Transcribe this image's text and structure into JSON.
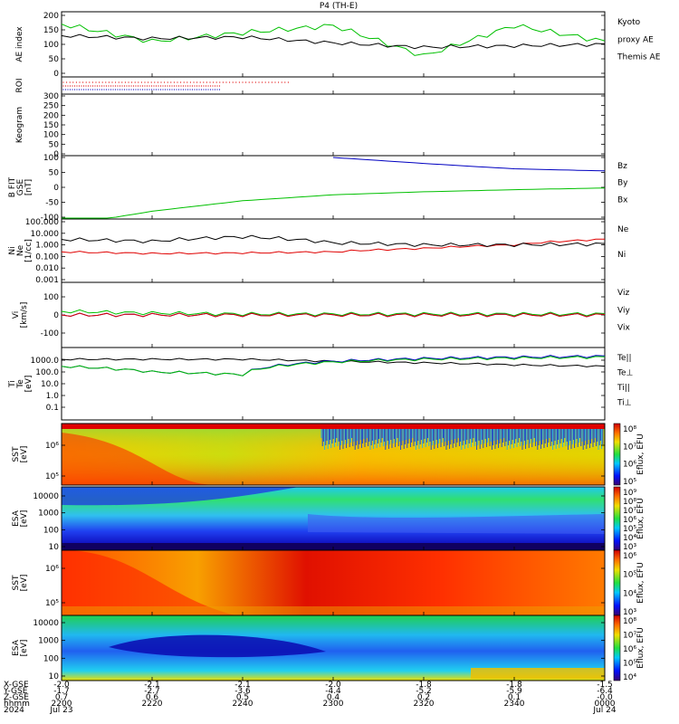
{
  "title": "P4 (TH-E)",
  "panels": {
    "ae": {
      "ylabel": "AE index",
      "yticks": [
        "200",
        "150",
        "100",
        "50",
        "0"
      ],
      "legend": [
        "Kyoto",
        "proxy AE",
        "Themis AE"
      ],
      "legend_colors": [
        "#00c000",
        "#00c000",
        "#000000"
      ]
    },
    "roi": {
      "ylabel": "ROI"
    },
    "keogram": {
      "ylabel": "Keogram",
      "yticks": [
        "300",
        "250",
        "200",
        "150",
        "100",
        "50",
        "0"
      ]
    },
    "bfit": {
      "ylabel": "B FIT\nGSE\n[nT]",
      "yticks": [
        "100",
        "50",
        "0",
        "-50",
        "-100"
      ],
      "legend": [
        "Bz",
        "By",
        "Bx"
      ],
      "legend_colors": [
        "#e00000",
        "#00c000",
        "#0000c0"
      ]
    },
    "ni": {
      "ylabel": "Ni\nNe\n[1/cc]",
      "yticks": [
        "100.000",
        "10.000",
        "1.000",
        "0.100",
        "0.010",
        "0.001"
      ],
      "legend": [
        "Ne",
        "Ni"
      ],
      "legend_colors": [
        "#e00000",
        "#000000"
      ]
    },
    "vi": {
      "ylabel": "Vi\n[km/s]",
      "yticks": [
        "100",
        "0",
        "-100"
      ],
      "legend": [
        "Viz",
        "Viy",
        "Vix"
      ],
      "legend_colors": [
        "#e00000",
        "#00c000",
        "#0000c0"
      ]
    },
    "ti": {
      "ylabel": "Ti\nTe\n[eV]",
      "yticks": [
        "1000.0",
        "100.0",
        "10.0",
        "1.0",
        "0.1"
      ],
      "legend": [
        "Te||",
        "Te⊥",
        "Ti||",
        "Ti⊥"
      ],
      "legend_colors": [
        "#000000",
        "#e00000",
        "#00c000",
        "#0000c0"
      ]
    },
    "sst_e": {
      "ylabel": "SST\n[eV]",
      "yticks": [
        "10⁶",
        "10⁵"
      ],
      "cbar_label": "Eflux, EFU",
      "cbar_ticks": [
        "10⁸",
        "10⁷",
        "10⁶",
        "10⁵"
      ]
    },
    "esa_e": {
      "ylabel": "ESA\n[eV]",
      "yticks": [
        "10000",
        "1000",
        "100",
        "10"
      ],
      "cbar_label": "Eflux, EFU",
      "cbar_ticks": [
        "10⁹",
        "10⁸",
        "10⁷",
        "10⁶",
        "10⁵",
        "10⁴",
        "10³"
      ]
    },
    "sst_i": {
      "ylabel": "SST\n[eV]",
      "yticks": [
        "10⁶",
        "10⁵"
      ],
      "cbar_label": "Eflux, EFU",
      "cbar_ticks": [
        "10⁶",
        "10⁵",
        "10⁴",
        "10³"
      ]
    },
    "esa_i": {
      "ylabel": "ESA\n[eV]",
      "yticks": [
        "10000",
        "1000",
        "100",
        "10"
      ],
      "cbar_label": "Eflux, EFU",
      "cbar_ticks": [
        "10⁸",
        "10⁷",
        "10⁶",
        "10⁵",
        "10⁴"
      ]
    }
  },
  "xaxis": {
    "row_labels": [
      "X-GSE",
      "Y-GSE",
      "Z-GSE",
      "hhmm",
      "2024"
    ],
    "columns": [
      {
        "x": "-2.0",
        "y": "-1.7",
        "z": "0.7",
        "t": "2200",
        "d": "Jul 23"
      },
      {
        "x": "-2.1",
        "y": "-2.7",
        "z": "0.6",
        "t": "2220",
        "d": ""
      },
      {
        "x": "-2.1",
        "y": "-3.6",
        "z": "0.5",
        "t": "2240",
        "d": ""
      },
      {
        "x": "-2.0",
        "y": "-4.4",
        "z": "0.4",
        "t": "2300",
        "d": ""
      },
      {
        "x": "-1.8",
        "y": "-5.2",
        "z": "0.2",
        "t": "2320",
        "d": ""
      },
      {
        "x": "-1.8",
        "y": "-5.9",
        "z": "0.1",
        "t": "2340",
        "d": ""
      },
      {
        "x": "-1.5",
        "y": "-6.4",
        "z": "-0.0",
        "t": "0000",
        "d": "Jul 24"
      }
    ]
  },
  "chart_data": [
    {
      "type": "line",
      "title": "P4 (TH-E)",
      "ylabel": "AE index",
      "ylim": [
        0,
        200
      ],
      "x": [
        "2200",
        "2220",
        "2240",
        "2300",
        "2320",
        "2340",
        "0000"
      ],
      "series": [
        {
          "name": "Kyoto proxy AE",
          "values": [
            170,
            110,
            140,
            165,
            60,
            165,
            110
          ]
        },
        {
          "name": "Themis AE",
          "values": [
            130,
            120,
            125,
            105,
            90,
            95,
            100
          ]
        }
      ]
    },
    {
      "type": "line",
      "ylabel": "B FIT GSE [nT]",
      "ylim": [
        -100,
        100
      ],
      "x": [
        "2200",
        "2220",
        "2240",
        "2300",
        "2320",
        "2340",
        "0000"
      ],
      "series": [
        {
          "name": "Bz",
          "values": [
            null,
            null,
            null,
            100,
            80,
            62,
            55
          ]
        },
        {
          "name": "By",
          "values": [
            -130,
            -80,
            -45,
            -25,
            -15,
            -8,
            -2
          ]
        },
        {
          "name": "Bx",
          "values": [
            null,
            null,
            null,
            null,
            null,
            null,
            null
          ]
        }
      ]
    },
    {
      "type": "line",
      "ylabel": "Ni Ne [1/cc]",
      "x": [
        "2200",
        "2220",
        "2240",
        "2300",
        "2320",
        "2340",
        "0000"
      ],
      "series": [
        {
          "name": "Ne",
          "values": [
            0.25,
            0.18,
            0.2,
            0.25,
            0.5,
            1.0,
            3.0
          ]
        },
        {
          "name": "Ni",
          "values": [
            3,
            2,
            5,
            1.5,
            1,
            1,
            1.2
          ]
        }
      ]
    },
    {
      "type": "line",
      "ylabel": "Vi [km/s]",
      "ylim": [
        -200,
        200
      ],
      "x": [
        "2200",
        "2220",
        "2240",
        "2300",
        "2320",
        "2340",
        "0000"
      ],
      "series": [
        {
          "name": "Viz",
          "values": [
            0,
            0,
            0,
            0,
            0,
            0,
            0
          ]
        },
        {
          "name": "Viy",
          "values": [
            20,
            10,
            5,
            5,
            5,
            5,
            5
          ]
        },
        {
          "name": "Vix",
          "values": [
            0,
            0,
            0,
            0,
            0,
            0,
            0
          ]
        }
      ]
    },
    {
      "type": "line",
      "ylabel": "Ti Te [eV]",
      "x": [
        "2200",
        "2220",
        "2240",
        "2300",
        "2320",
        "2340",
        "0000"
      ],
      "series": [
        {
          "name": "Te||",
          "values": [
            1200,
            1200,
            1200,
            800,
            600,
            400,
            300
          ]
        },
        {
          "name": "Ti||",
          "values": [
            300,
            100,
            60,
            700,
            1200,
            1500,
            1800
          ]
        },
        {
          "name": "Ti⊥",
          "values": [
            300,
            100,
            60,
            800,
            1400,
            1800,
            2200
          ]
        }
      ]
    }
  ]
}
